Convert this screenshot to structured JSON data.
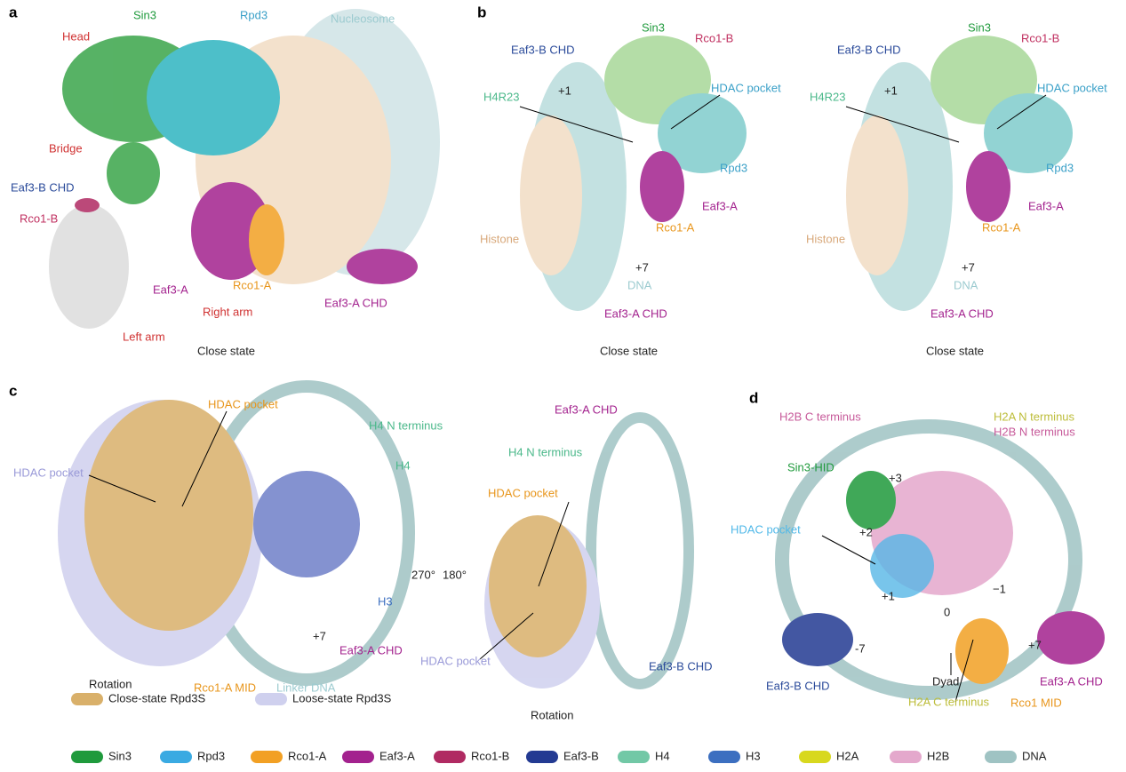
{
  "panels": [
    {
      "letter": "a",
      "labels": [
        "Sin3",
        "Rpd3",
        "Nucleosome",
        "Head",
        "Bridge",
        "Eaf3-B CHD",
        "Rco1-B",
        "Eaf3-A",
        "Rco1-A",
        "Right arm",
        "Eaf3-A CHD",
        "Left arm"
      ],
      "caption": "Close state"
    },
    {
      "letter": "b",
      "views": [
        {
          "labels": [
            "Sin3",
            "Rco1-B",
            "Eaf3-B CHD",
            "+1",
            "HDAC pocket",
            "H4R23",
            "Rpd3",
            "Eaf3-A",
            "Histone",
            "Rco1-A",
            "+7",
            "DNA",
            "Eaf3-A CHD"
          ],
          "caption": "Close state"
        },
        {
          "labels": [
            "Sin3",
            "Rco1-B",
            "Eaf3-B CHD",
            "+1",
            "HDAC pocket",
            "H4R23",
            "Rpd3",
            "Eaf3-A",
            "Histone",
            "Rco1-A",
            "+7",
            "DNA",
            "Eaf3-A CHD"
          ],
          "caption": "Close state"
        }
      ]
    },
    {
      "letter": "c",
      "labels": [
        "HDAC pocket",
        "H4 N terminus",
        "H4",
        "HDAC pocket",
        "H3",
        "+7",
        "Eaf3-A CHD",
        "Rotation",
        "Rco1-A MID",
        "Linker DNA",
        "270°",
        "180°",
        "Eaf3-A CHD",
        "H4 N terminus",
        "HDAC pocket",
        "HDAC pocket",
        "Eaf3-B CHD",
        "Rotation"
      ]
    },
    {
      "letter": "d",
      "labels": [
        "H2B C terminus",
        "H2A N terminus",
        "H2B N terminus",
        "Sin3-HID",
        "+3",
        "HDAC pocket",
        "+2",
        "+1",
        "0",
        "−1",
        "-7",
        "+7",
        "Eaf3-B CHD",
        "Dyad",
        "H2A C terminus",
        "Rco1 MID",
        "Eaf3-A CHD"
      ]
    }
  ],
  "legend": {
    "states": [
      {
        "name": "Close-state Rpd3S",
        "color": "#d9b06a"
      },
      {
        "name": "Loose-state Rpd3S",
        "color": "#cfd0ee"
      }
    ],
    "components": [
      {
        "name": "Sin3",
        "color": "#1f9a3c"
      },
      {
        "name": "Rpd3",
        "color": "#3aaae2"
      },
      {
        "name": "Rco1-A",
        "color": "#f2a024"
      },
      {
        "name": "Eaf3-A",
        "color": "#a3228e"
      },
      {
        "name": "Rco1-B",
        "color": "#b02a62"
      },
      {
        "name": "Eaf3-B",
        "color": "#233a92"
      },
      {
        "name": "H4",
        "color": "#72c8a6"
      },
      {
        "name": "H3",
        "color": "#3c6fc0"
      },
      {
        "name": "H2A",
        "color": "#d8d81e"
      },
      {
        "name": "H2B",
        "color": "#e4a8cc"
      },
      {
        "name": "DNA",
        "color": "#9fc3c3"
      }
    ]
  }
}
